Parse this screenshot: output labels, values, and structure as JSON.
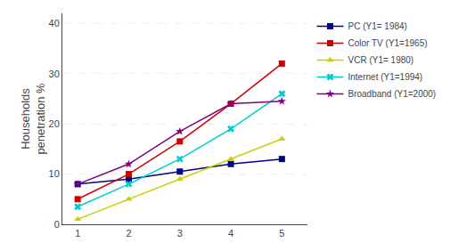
{
  "chart_data": {
    "type": "line",
    "y_label": "Households\npenetration %",
    "x": [
      1,
      2,
      3,
      4,
      5
    ],
    "series": [
      {
        "name": "PC (Y1= 1984)",
        "color": "#00008B",
        "marker": "square",
        "values": [
          8,
          9,
          10.5,
          12,
          13
        ]
      },
      {
        "name": "Color TV (Y1=1965)",
        "color": "#CC0000",
        "marker": "square",
        "values": [
          5,
          10,
          16.5,
          24,
          32
        ]
      },
      {
        "name": "VCR (Y1= 1980)",
        "color": "#CCCC00",
        "marker": "triangle",
        "values": [
          1,
          5,
          9,
          13,
          17
        ]
      },
      {
        "name": "Internet (Y1=1994)",
        "color": "#00CCCC",
        "marker": "x",
        "values": [
          3.5,
          8,
          13,
          19,
          26
        ]
      },
      {
        "name": "Broadband (Y1=2000)",
        "color": "#800080",
        "marker": "star",
        "values": [
          8,
          12,
          18.5,
          24,
          24.5
        ]
      }
    ],
    "xlim": [
      0.7,
      5.5
    ],
    "ylim": [
      0,
      42
    ],
    "xticks": [
      1,
      2,
      3,
      4,
      5
    ],
    "yticks": [
      0,
      10,
      20,
      30,
      40
    ],
    "grid": "y",
    "legend": "right"
  }
}
